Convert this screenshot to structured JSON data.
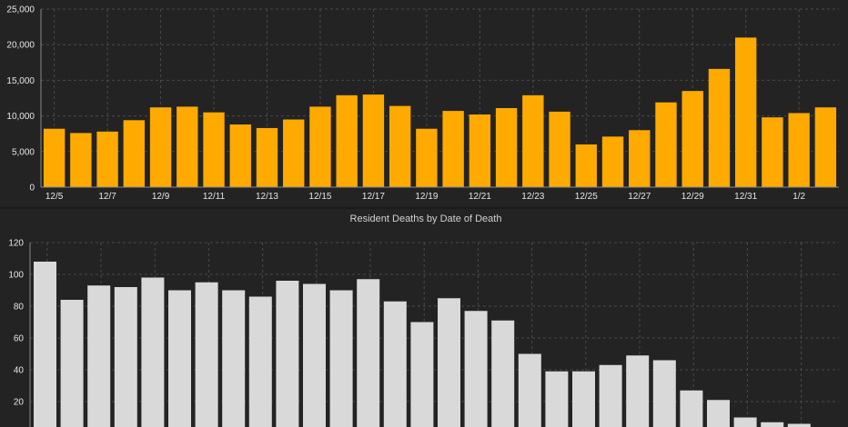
{
  "chart_data": [
    {
      "type": "bar",
      "title": "",
      "xlabel": "",
      "ylabel": "",
      "color": "#FFAA00",
      "grid": true,
      "ylim": [
        0,
        25000
      ],
      "y_ticks": [
        "0",
        "5,000",
        "10,000",
        "15,000",
        "20,000",
        "25,000"
      ],
      "y_tick_values": [
        0,
        5000,
        10000,
        15000,
        20000,
        25000
      ],
      "categories": [
        "12/5",
        "12/6",
        "12/7",
        "12/8",
        "12/9",
        "12/10",
        "12/11",
        "12/12",
        "12/13",
        "12/14",
        "12/15",
        "12/16",
        "12/17",
        "12/18",
        "12/19",
        "12/20",
        "12/21",
        "12/22",
        "12/23",
        "12/24",
        "12/25",
        "12/26",
        "12/27",
        "12/28",
        "12/29",
        "12/30",
        "12/31",
        "1/1",
        "1/2",
        "1/3"
      ],
      "x_tick_labels": [
        "12/5",
        "12/7",
        "12/9",
        "12/11",
        "12/13",
        "12/15",
        "12/17",
        "12/19",
        "12/21",
        "12/23",
        "12/25",
        "12/27",
        "12/29",
        "12/31",
        "1/2"
      ],
      "values": [
        8200,
        7600,
        7800,
        9400,
        11200,
        11300,
        10500,
        8800,
        8300,
        9500,
        11300,
        12900,
        13000,
        11400,
        8200,
        10700,
        10200,
        11100,
        12900,
        10600,
        6000,
        7100,
        8000,
        11900,
        13500,
        16600,
        21000,
        9800,
        10400,
        11200
      ]
    },
    {
      "type": "bar",
      "title": "Resident Deaths by Date of Death",
      "xlabel": "",
      "ylabel": "",
      "color": "#D9D9D9",
      "grid": true,
      "ylim": [
        0,
        120
      ],
      "y_ticks": [
        "20",
        "40",
        "60",
        "80",
        "100",
        "120"
      ],
      "y_tick_values": [
        20,
        40,
        60,
        80,
        100,
        120
      ],
      "values": [
        108,
        84,
        93,
        92,
        98,
        90,
        95,
        90,
        86,
        96,
        94,
        90,
        97,
        83,
        70,
        85,
        77,
        71,
        50,
        39,
        39,
        43,
        49,
        46,
        27,
        21,
        10,
        7,
        6
      ]
    }
  ]
}
